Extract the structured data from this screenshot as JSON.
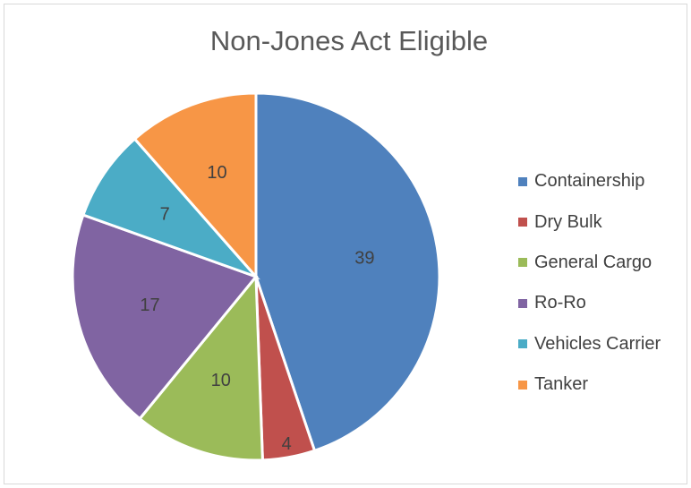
{
  "chart_data": {
    "type": "pie",
    "title": "Non-Jones Act Eligible",
    "categories": [
      "Containership",
      "Dry Bulk",
      "General Cargo",
      "Ro-Ro",
      "Vehicles Carrier",
      "Tanker"
    ],
    "values": [
      39,
      4,
      10,
      17,
      7,
      10
    ],
    "colors": [
      "#4f81bd",
      "#c0504d",
      "#9bbb59",
      "#8064a2",
      "#4bacc6",
      "#f79646"
    ],
    "legend_position": "right",
    "data_labels": true
  }
}
